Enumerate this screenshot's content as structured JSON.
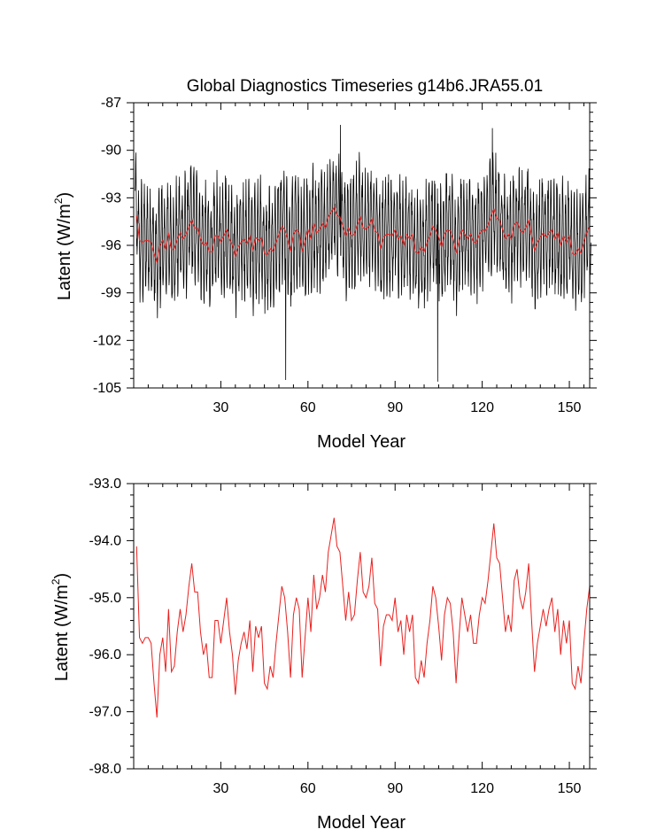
{
  "figure_title": "Global Diagnostics Timeseries g14b6.JRA55.01",
  "colors": {
    "monthly_series": "#000000",
    "annual_series": "#e8211f",
    "axes": "#000000"
  },
  "chart_data": [
    {
      "type": "line",
      "panel": "top",
      "title": "Global Diagnostics Timeseries g14b6.JRA55.01",
      "xlabel": "Model Year",
      "ylabel_main": "Latent (W/m",
      "ylabel_sup": "2",
      "ylabel_end": ")",
      "xlim": [
        0,
        157
      ],
      "ylim": [
        -105,
        -87
      ],
      "xticks": [
        30,
        60,
        90,
        120,
        150
      ],
      "xtick_labels": [
        "30",
        "60",
        "90",
        "120",
        "150"
      ],
      "yticks": [
        -87,
        -90,
        -93,
        -96,
        -99,
        -102,
        -105
      ],
      "ytick_labels": [
        "-87",
        "-90",
        "-93",
        "-96",
        "-99",
        "-102",
        "-105"
      ],
      "series": [
        {
          "name": "monthly",
          "color": "#000000",
          "seasonal_amplitude": 3.0,
          "noise": 1.2,
          "extremes": [
            {
              "x": 52.3,
              "y": -104.5
            },
            {
              "x": 104.7,
              "y": -104.6
            },
            {
              "x": 71.2,
              "y": -88.4
            },
            {
              "x": 123.5,
              "y": -88.6
            }
          ]
        },
        {
          "name": "annual",
          "color": "#e8211f",
          "source": "annual_values"
        }
      ]
    },
    {
      "type": "line",
      "panel": "bottom",
      "title": "",
      "xlabel": "Model Year",
      "ylabel_main": "Latent (W/m",
      "ylabel_sup": "2",
      "ylabel_end": ")",
      "xlim": [
        0,
        157
      ],
      "ylim": [
        -98.0,
        -93.0
      ],
      "xticks": [
        30,
        60,
        90,
        120,
        150
      ],
      "xtick_labels": [
        "30",
        "60",
        "90",
        "120",
        "150"
      ],
      "yticks": [
        -93.0,
        -94.0,
        -95.0,
        -96.0,
        -97.0,
        -98.0
      ],
      "ytick_labels": [
        "-93.0",
        "-94.0",
        "-95.0",
        "-96.0",
        "-97.0",
        "-98.0"
      ],
      "series": [
        {
          "name": "annual",
          "color": "#e8211f",
          "x_start": 1,
          "values": [
            -94.1,
            -95.7,
            -95.8,
            -95.7,
            -95.7,
            -95.8,
            -96.5,
            -97.1,
            -96.0,
            -95.7,
            -96.3,
            -95.2,
            -96.3,
            -96.2,
            -95.6,
            -95.2,
            -95.6,
            -95.3,
            -94.8,
            -94.4,
            -94.9,
            -94.9,
            -95.6,
            -96.0,
            -95.8,
            -96.4,
            -96.4,
            -95.4,
            -95.4,
            -95.8,
            -95.4,
            -95.0,
            -95.6,
            -96.0,
            -96.7,
            -96.1,
            -95.8,
            -95.6,
            -95.9,
            -95.4,
            -96.3,
            -95.5,
            -95.7,
            -95.5,
            -96.5,
            -96.6,
            -96.2,
            -96.4,
            -95.8,
            -95.3,
            -94.8,
            -95.0,
            -95.6,
            -96.4,
            -95.3,
            -95.0,
            -95.2,
            -96.4,
            -95.7,
            -95.0,
            -95.6,
            -94.6,
            -95.2,
            -95.0,
            -94.6,
            -94.9,
            -94.2,
            -93.9,
            -93.6,
            -94.1,
            -94.2,
            -94.8,
            -95.4,
            -94.9,
            -95.4,
            -95.3,
            -94.7,
            -94.2,
            -94.9,
            -95.0,
            -94.8,
            -94.3,
            -95.1,
            -95.2,
            -96.2,
            -95.5,
            -95.3,
            -95.3,
            -95.4,
            -95.0,
            -95.6,
            -95.4,
            -96.0,
            -95.3,
            -95.6,
            -95.3,
            -96.4,
            -96.5,
            -96.1,
            -96.4,
            -95.8,
            -95.4,
            -94.8,
            -95.0,
            -95.5,
            -96.1,
            -95.3,
            -95.0,
            -95.1,
            -95.6,
            -96.5,
            -95.7,
            -95.0,
            -95.3,
            -95.6,
            -95.3,
            -95.8,
            -95.8,
            -95.3,
            -95.0,
            -95.1,
            -94.7,
            -94.2,
            -93.7,
            -94.3,
            -94.4,
            -95.0,
            -95.6,
            -95.3,
            -95.6,
            -94.7,
            -94.5,
            -95.0,
            -95.2,
            -94.9,
            -94.4,
            -95.4,
            -96.3,
            -95.8,
            -95.5,
            -95.2,
            -95.5,
            -95.2,
            -95.0,
            -95.6,
            -95.2,
            -96.0,
            -95.4,
            -95.8,
            -95.4,
            -96.5,
            -96.6,
            -96.2,
            -96.5,
            -95.8,
            -95.2,
            -94.8
          ]
        }
      ]
    }
  ]
}
